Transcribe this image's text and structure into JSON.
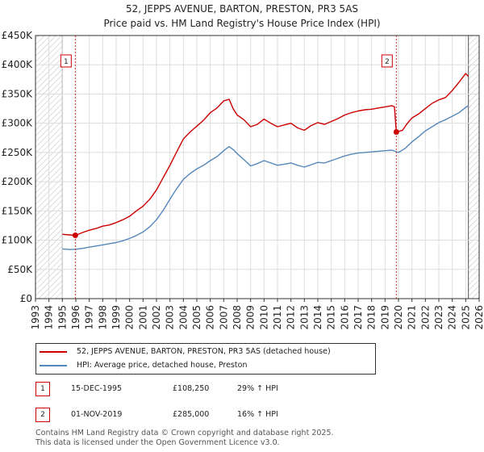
{
  "chart_data": {
    "type": "line",
    "title": "52, JEPPS AVENUE, BARTON, PRESTON, PR3 5AS",
    "subtitle": "Price paid vs. HM Land Registry's House Price Index (HPI)",
    "xlim": [
      1993,
      2026
    ],
    "ylim": [
      0,
      450000
    ],
    "x_ticks": [
      "1993",
      "1994",
      "1995",
      "1996",
      "1997",
      "1998",
      "1999",
      "2000",
      "2001",
      "2002",
      "2003",
      "2004",
      "2005",
      "2006",
      "2007",
      "2008",
      "2009",
      "2010",
      "2011",
      "2012",
      "2013",
      "2014",
      "2015",
      "2016",
      "2017",
      "2018",
      "2019",
      "2020",
      "2021",
      "2022",
      "2023",
      "2024",
      "2025",
      "2026"
    ],
    "y_ticks": [
      {
        "value": 0,
        "label": "£0"
      },
      {
        "value": 50000,
        "label": "£50K"
      },
      {
        "value": 100000,
        "label": "£100K"
      },
      {
        "value": 150000,
        "label": "£150K"
      },
      {
        "value": 200000,
        "label": "£200K"
      },
      {
        "value": 250000,
        "label": "£250K"
      },
      {
        "value": 300000,
        "label": "£300K"
      },
      {
        "value": 350000,
        "label": "£350K"
      },
      {
        "value": 400000,
        "label": "£400K"
      },
      {
        "value": 450000,
        "label": "£450K"
      }
    ],
    "hatched_ranges": [
      [
        1993,
        1995.0
      ],
      [
        2025.2,
        2026
      ]
    ],
    "series": [
      {
        "name": "52, JEPPS AVENUE, BARTON, PRESTON, PR3 5AS (detached house)",
        "color": "#cc0000",
        "x": [
          1995.0,
          1995.5,
          1995.96,
          1996.5,
          1997.0,
          1997.5,
          1998.0,
          1998.5,
          1999.0,
          1999.5,
          2000.0,
          2000.5,
          2001.0,
          2001.5,
          2002.0,
          2002.5,
          2003.0,
          2003.5,
          2004.0,
          2004.5,
          2005.0,
          2005.5,
          2006.0,
          2006.5,
          2007.0,
          2007.4,
          2007.7,
          2008.0,
          2008.5,
          2009.0,
          2009.5,
          2010.0,
          2010.5,
          2011.0,
          2011.5,
          2012.0,
          2012.5,
          2013.0,
          2013.5,
          2014.0,
          2014.5,
          2015.0,
          2015.5,
          2016.0,
          2016.5,
          2017.0,
          2017.5,
          2018.0,
          2018.5,
          2019.0,
          2019.5,
          2019.7,
          2019.84,
          2020.0,
          2020.3,
          2020.6,
          2021.0,
          2021.5,
          2022.0,
          2022.5,
          2023.0,
          2023.5,
          2024.0,
          2024.5,
          2025.0,
          2025.2
        ],
        "values": [
          110000,
          109000,
          108250,
          113000,
          117000,
          120000,
          124000,
          126000,
          130000,
          135000,
          141000,
          150000,
          158000,
          170000,
          186000,
          207000,
          228000,
          251000,
          273000,
          285000,
          295000,
          305000,
          318000,
          326000,
          338000,
          341000,
          325000,
          314000,
          306000,
          294000,
          298000,
          307000,
          300000,
          294000,
          297000,
          300000,
          292000,
          288000,
          296000,
          301000,
          298000,
          303000,
          308000,
          314000,
          318000,
          321000,
          323000,
          324000,
          326000,
          328000,
          330000,
          328000,
          285000,
          286000,
          288000,
          298000,
          309000,
          316000,
          325000,
          334000,
          340000,
          344000,
          356000,
          370000,
          385000,
          380000
        ]
      },
      {
        "name": "HPI: Average price, detached house, Preston",
        "color": "#5588bb",
        "x": [
          1995.0,
          1995.5,
          1996.0,
          1996.5,
          1997.0,
          1997.5,
          1998.0,
          1998.5,
          1999.0,
          1999.5,
          2000.0,
          2000.5,
          2001.0,
          2001.5,
          2002.0,
          2002.5,
          2003.0,
          2003.5,
          2004.0,
          2004.5,
          2005.0,
          2005.5,
          2006.0,
          2006.5,
          2007.0,
          2007.4,
          2007.7,
          2008.0,
          2008.5,
          2009.0,
          2009.5,
          2010.0,
          2010.5,
          2011.0,
          2011.5,
          2012.0,
          2012.5,
          2013.0,
          2013.5,
          2014.0,
          2014.5,
          2015.0,
          2015.5,
          2016.0,
          2016.5,
          2017.0,
          2017.5,
          2018.0,
          2018.5,
          2019.0,
          2019.5,
          2020.0,
          2020.5,
          2021.0,
          2021.5,
          2022.0,
          2022.5,
          2023.0,
          2023.5,
          2024.0,
          2024.5,
          2025.0,
          2025.2
        ],
        "values": [
          85000,
          84000,
          84500,
          86000,
          88000,
          90000,
          92000,
          94000,
          96000,
          99000,
          103000,
          108000,
          114000,
          123000,
          135000,
          151000,
          170000,
          188000,
          204000,
          214000,
          222000,
          228000,
          236000,
          243000,
          253000,
          260000,
          255000,
          248000,
          238000,
          227000,
          231000,
          236000,
          232000,
          228000,
          230000,
          232000,
          228000,
          225000,
          229000,
          233000,
          232000,
          236000,
          240000,
          244000,
          247000,
          249000,
          250000,
          251000,
          252000,
          253000,
          254000,
          250000,
          257000,
          268000,
          277000,
          287000,
          294000,
          301000,
          306000,
          312000,
          318000,
          327000,
          330000
        ]
      }
    ],
    "annotations": [
      {
        "label": "1",
        "x": 1995.96,
        "value": 108250
      },
      {
        "label": "2",
        "x": 2019.84,
        "value": 285000
      }
    ]
  },
  "legend": {
    "property": "52, JEPPS AVENUE, BARTON, PRESTON, PR3 5AS (detached house)",
    "hpi": "HPI: Average price, detached house, Preston"
  },
  "transactions": [
    {
      "num": "1",
      "date": "15-DEC-1995",
      "price": "£108,250",
      "hpi": "29% ↑ HPI"
    },
    {
      "num": "2",
      "date": "01-NOV-2019",
      "price": "£285,000",
      "hpi": "16% ↑ HPI"
    }
  ],
  "footer": {
    "line1": "Contains HM Land Registry data © Crown copyright and database right 2025.",
    "line2": "This data is licensed under the Open Government Licence v3.0."
  },
  "colors": {
    "red": "#cc0000",
    "blue": "#5588bb",
    "grid": "#dddddd",
    "plot_bg": "#ffffff"
  }
}
